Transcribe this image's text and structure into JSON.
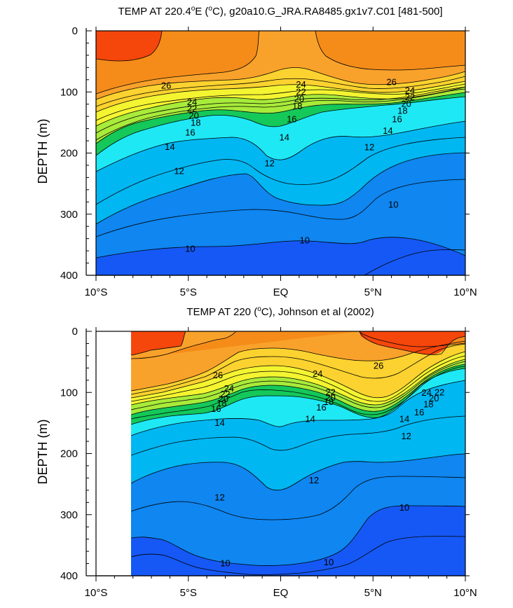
{
  "chart_data": [
    {
      "type": "heatmap",
      "subtype": "filled-contour",
      "title": "TEMP AT 220.4°E (°C), g20a10.G_JRA.RA8485.gx1v7.C01 [481-500]",
      "title_parts": {
        "pre": "TEMP AT 220.4",
        "deg1": "o",
        "mid": "E (",
        "deg2": "o",
        "post": "C), g20a10.G_JRA.RA8485.gx1v7.C01 [481-500]"
      },
      "xlabel": "",
      "ylabel": "DEPTH (m)",
      "xlim": [
        -10,
        10
      ],
      "ylim": [
        0,
        400
      ],
      "y_inverted": true,
      "data_xlim": [
        -10,
        10
      ],
      "x_ticks": [
        {
          "value": -10,
          "label": "10°S"
        },
        {
          "value": -5,
          "label": "5°S"
        },
        {
          "value": 0,
          "label": "EQ"
        },
        {
          "value": 5,
          "label": "5°N"
        },
        {
          "value": 10,
          "label": "10°N"
        }
      ],
      "y_ticks": [
        0,
        100,
        200,
        300,
        400
      ],
      "contour_labels": [
        {
          "label": "26",
          "lat": -6.2,
          "depth": 90
        },
        {
          "label": "24",
          "lat": -4.8,
          "depth": 117
        },
        {
          "label": "22",
          "lat": -4.8,
          "depth": 128
        },
        {
          "label": "20",
          "lat": -4.7,
          "depth": 139
        },
        {
          "label": "18",
          "lat": -4.6,
          "depth": 151
        },
        {
          "label": "16",
          "lat": -4.9,
          "depth": 167
        },
        {
          "label": "14",
          "lat": -6.0,
          "depth": 190
        },
        {
          "label": "12",
          "lat": -5.5,
          "depth": 230
        },
        {
          "label": "10",
          "lat": -4.9,
          "depth": 357
        },
        {
          "label": "24",
          "lat": 1.1,
          "depth": 88
        },
        {
          "label": "22",
          "lat": 1.1,
          "depth": 100
        },
        {
          "label": "20",
          "lat": 1.0,
          "depth": 112
        },
        {
          "label": "18",
          "lat": 0.9,
          "depth": 124
        },
        {
          "label": "16",
          "lat": 0.6,
          "depth": 145
        },
        {
          "label": "14",
          "lat": 0.2,
          "depth": 175
        },
        {
          "label": "12",
          "lat": -0.6,
          "depth": 217
        },
        {
          "label": "10",
          "lat": 1.3,
          "depth": 343
        },
        {
          "label": "26",
          "lat": 6.0,
          "depth": 84
        },
        {
          "label": "24",
          "lat": 7.0,
          "depth": 98
        },
        {
          "label": "22",
          "lat": 7.0,
          "depth": 109
        },
        {
          "label": "20",
          "lat": 6.8,
          "depth": 120
        },
        {
          "label": "18",
          "lat": 6.6,
          "depth": 131
        },
        {
          "label": "16",
          "lat": 6.3,
          "depth": 145
        },
        {
          "label": "14",
          "lat": 5.8,
          "depth": 164
        },
        {
          "label": "12",
          "lat": 4.8,
          "depth": 191
        },
        {
          "label": "10",
          "lat": 6.1,
          "depth": 285
        }
      ]
    },
    {
      "type": "heatmap",
      "subtype": "filled-contour",
      "title": "TEMP AT 220 (°C), Johnson et al (2002)",
      "title_parts": {
        "pre": "TEMP AT 220 (",
        "deg1": "o",
        "mid": "C), Johnson et al (2002)",
        "deg2": "",
        "post": ""
      },
      "xlabel": "",
      "ylabel": "DEPTH (m)",
      "xlim": [
        -10,
        10
      ],
      "ylim": [
        0,
        400
      ],
      "y_inverted": true,
      "data_xlim": [
        -7.9,
        10
      ],
      "x_ticks": [
        {
          "value": -10,
          "label": "10°S"
        },
        {
          "value": -5,
          "label": "5°S"
        },
        {
          "value": 0,
          "label": "EQ"
        },
        {
          "value": 5,
          "label": "5°N"
        },
        {
          "value": 10,
          "label": "10°N"
        }
      ],
      "y_ticks": [
        0,
        100,
        200,
        300,
        400
      ],
      "contour_labels": [
        {
          "label": "26",
          "lat": -3.4,
          "depth": 72
        },
        {
          "label": "24",
          "lat": -2.8,
          "depth": 94
        },
        {
          "label": "22",
          "lat": -3.0,
          "depth": 103
        },
        {
          "label": "20",
          "lat": -3.1,
          "depth": 111
        },
        {
          "label": "18",
          "lat": -3.2,
          "depth": 118
        },
        {
          "label": "16",
          "lat": -3.5,
          "depth": 127
        },
        {
          "label": "14",
          "lat": -3.3,
          "depth": 150
        },
        {
          "label": "12",
          "lat": -3.3,
          "depth": 272
        },
        {
          "label": "10",
          "lat": -3.0,
          "depth": 380
        },
        {
          "label": "26",
          "lat": 5.3,
          "depth": 57
        },
        {
          "label": "24",
          "lat": 2.0,
          "depth": 70
        },
        {
          "label": "22",
          "lat": 2.7,
          "depth": 100
        },
        {
          "label": "20",
          "lat": 2.7,
          "depth": 109
        },
        {
          "label": "18",
          "lat": 2.6,
          "depth": 116
        },
        {
          "label": "16",
          "lat": 2.2,
          "depth": 125
        },
        {
          "label": "14",
          "lat": 1.6,
          "depth": 144
        },
        {
          "label": "12",
          "lat": 1.8,
          "depth": 244
        },
        {
          "label": "10",
          "lat": 2.6,
          "depth": 378
        },
        {
          "label": "24",
          "lat": 7.9,
          "depth": 101
        },
        {
          "label": "22",
          "lat": 8.6,
          "depth": 100
        },
        {
          "label": "20",
          "lat": 8.3,
          "depth": 110
        },
        {
          "label": "18",
          "lat": 8.0,
          "depth": 120
        },
        {
          "label": "16",
          "lat": 7.5,
          "depth": 133
        },
        {
          "label": "14",
          "lat": 6.7,
          "depth": 144
        },
        {
          "label": "12",
          "lat": 6.8,
          "depth": 172
        },
        {
          "label": "10",
          "lat": 6.7,
          "depth": 289
        }
      ]
    }
  ],
  "color_scale": {
    "levels": [
      10,
      12,
      14,
      16,
      18,
      20,
      22,
      24,
      26
    ],
    "colors": [
      "#1558f5",
      "#0f86f0",
      "#00b7f2",
      "#1fe8f5",
      "#14c85a",
      "#a8eb3a",
      "#f4f431",
      "#fbd22f",
      "#f9a22b",
      "#f58c1a",
      "#f5460c"
    ]
  }
}
